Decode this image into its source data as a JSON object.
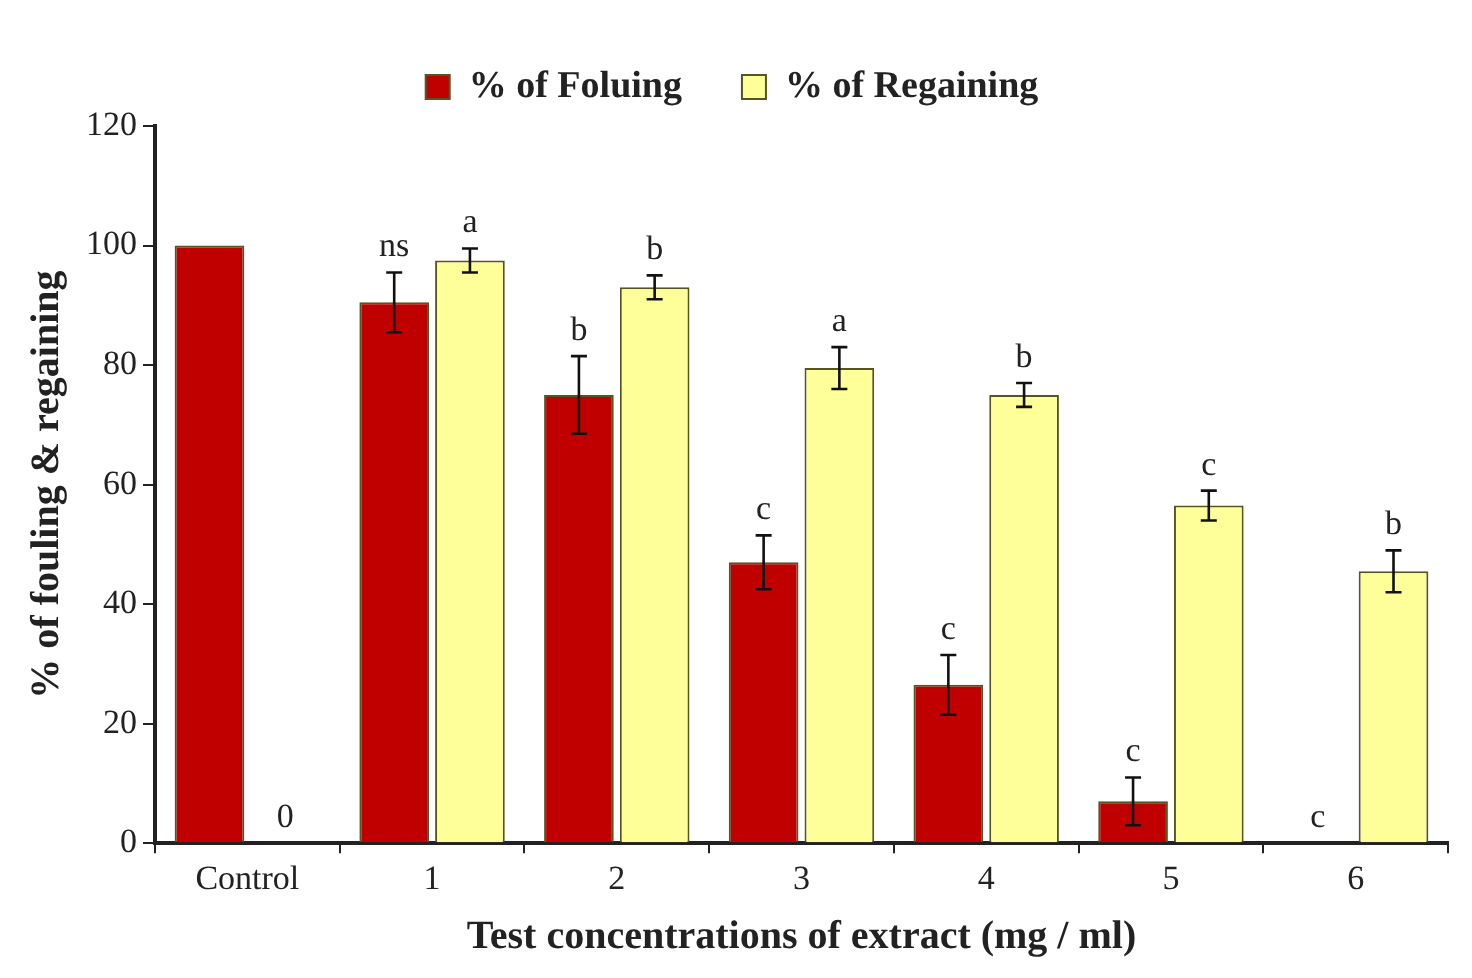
{
  "chart_data": {
    "type": "bar",
    "xlabel": "Test concentrations of extract (mg / ml)",
    "ylabel": "% of fouling & regaining",
    "categories": [
      "Control",
      "1",
      "2",
      "3",
      "4",
      "5",
      "6"
    ],
    "series": [
      {
        "name": "% of Foluing",
        "color": "#c00000",
        "values": [
          100,
          90.5,
          75,
          47,
          26.5,
          7,
          0
        ],
        "errors": [
          null,
          5,
          6.5,
          4.5,
          5,
          4,
          null
        ]
      },
      {
        "name": "% of Regaining",
        "color": "#ffff99",
        "values": [
          0,
          97.5,
          93,
          79.5,
          75,
          56.5,
          45.5
        ],
        "errors": [
          null,
          2,
          2,
          3.5,
          2,
          2.5,
          3.5
        ]
      }
    ],
    "ylim": [
      0,
      120
    ],
    "yticks": [
      0,
      20,
      40,
      60,
      80,
      100,
      120
    ],
    "grid": false,
    "legend": "top",
    "annotations": [
      {
        "text": "0",
        "x": "Control",
        "y": 0
      },
      {
        "text": "ns",
        "x": "1",
        "y": 90.5
      },
      {
        "text": "a",
        "x": "1",
        "y": 97.5
      },
      {
        "text": "b",
        "x": "2",
        "y": 75
      },
      {
        "text": "b",
        "x": "2",
        "y": 93
      },
      {
        "text": "c",
        "x": "3",
        "y": 47
      },
      {
        "text": "a",
        "x": "3",
        "y": 79.5
      },
      {
        "text": "c",
        "x": "4",
        "y": 26.5
      },
      {
        "text": "b",
        "x": "4",
        "y": 75
      },
      {
        "text": "c",
        "x": "5",
        "y": 7
      },
      {
        "text": "c",
        "x": "5",
        "y": 56.5
      },
      {
        "text": "c",
        "x": "6",
        "y": 0
      },
      {
        "text": "b",
        "x": "6",
        "y": 45.5
      }
    ]
  }
}
